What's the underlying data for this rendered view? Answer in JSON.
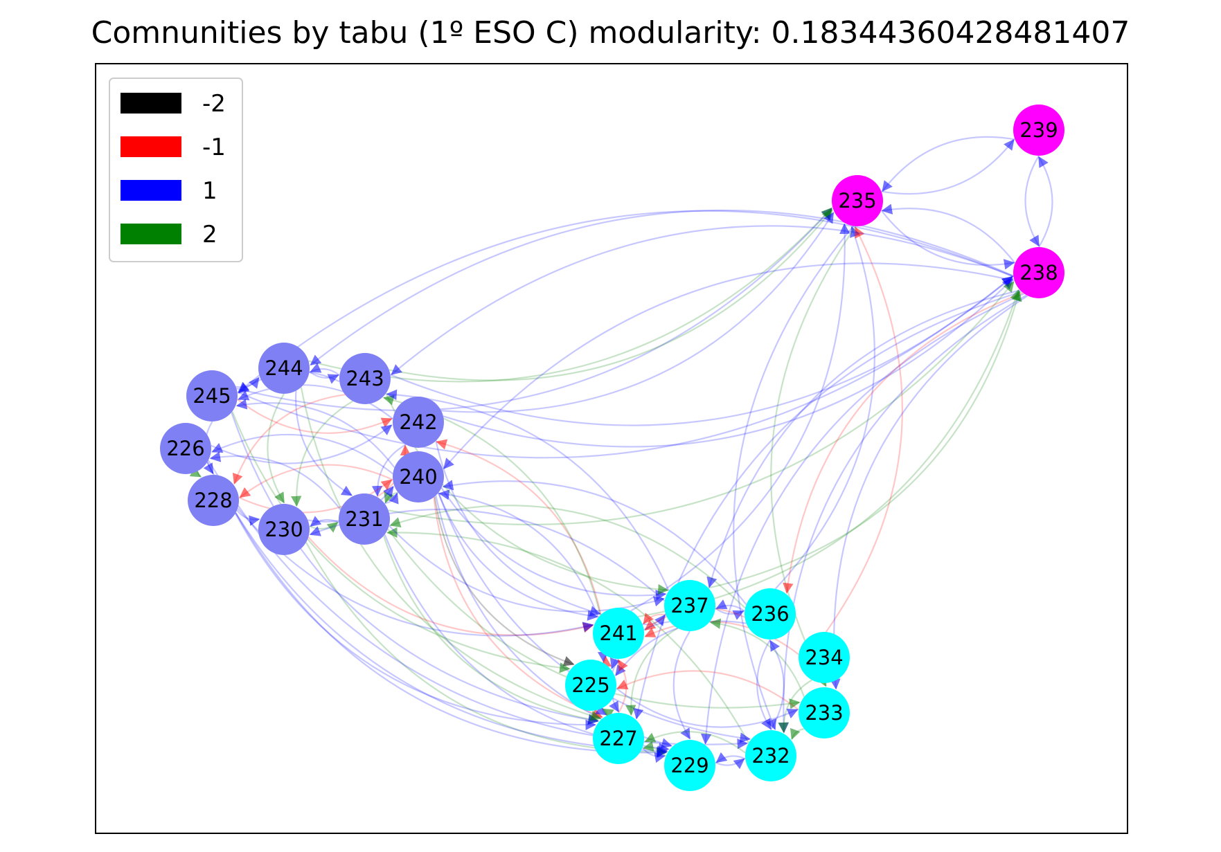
{
  "title": "Comnunities by tabu (1º ESO C) modularity: 0.18344360428481407",
  "legend": [
    {
      "label": "-2",
      "color": "#000000"
    },
    {
      "label": "-1",
      "color": "#ff0000"
    },
    {
      "label": "1",
      "color": "#0000ff"
    },
    {
      "label": "2",
      "color": "#008000"
    }
  ],
  "community_colors": {
    "a": "#8080f5",
    "b": "#00ffff",
    "c": "#ff00ff"
  },
  "nodes": [
    {
      "id": "245",
      "community": "a"
    },
    {
      "id": "244",
      "community": "a"
    },
    {
      "id": "243",
      "community": "a"
    },
    {
      "id": "242",
      "community": "a"
    },
    {
      "id": "226",
      "community": "a"
    },
    {
      "id": "240",
      "community": "a"
    },
    {
      "id": "228",
      "community": "a"
    },
    {
      "id": "230",
      "community": "a"
    },
    {
      "id": "231",
      "community": "a"
    },
    {
      "id": "237",
      "community": "b"
    },
    {
      "id": "236",
      "community": "b"
    },
    {
      "id": "241",
      "community": "b"
    },
    {
      "id": "234",
      "community": "b"
    },
    {
      "id": "225",
      "community": "b"
    },
    {
      "id": "233",
      "community": "b"
    },
    {
      "id": "227",
      "community": "b"
    },
    {
      "id": "232",
      "community": "b"
    },
    {
      "id": "229",
      "community": "b"
    },
    {
      "id": "239",
      "community": "c"
    },
    {
      "id": "235",
      "community": "c"
    },
    {
      "id": "238",
      "community": "c"
    }
  ],
  "edges": [
    {
      "s": "239",
      "t": "235",
      "w": "1"
    },
    {
      "s": "235",
      "t": "239",
      "w": "1"
    },
    {
      "s": "238",
      "t": "239",
      "w": "1"
    },
    {
      "s": "239",
      "t": "238",
      "w": "1"
    },
    {
      "s": "238",
      "t": "235",
      "w": "1"
    },
    {
      "s": "235",
      "t": "238",
      "w": "1"
    },
    {
      "s": "245",
      "t": "235",
      "w": "1"
    },
    {
      "s": "244",
      "t": "235",
      "w": "2"
    },
    {
      "s": "243",
      "t": "235",
      "w": "2"
    },
    {
      "s": "242",
      "t": "235",
      "w": "1"
    },
    {
      "s": "241",
      "t": "235",
      "w": "1"
    },
    {
      "s": "236",
      "t": "235",
      "w": "1"
    },
    {
      "s": "234",
      "t": "235",
      "w": "-1"
    },
    {
      "s": "235",
      "t": "233",
      "w": "2"
    },
    {
      "s": "235",
      "t": "232",
      "w": "1"
    },
    {
      "s": "245",
      "t": "238",
      "w": "1"
    },
    {
      "s": "243",
      "t": "238",
      "w": "1"
    },
    {
      "s": "242",
      "t": "238",
      "w": "1"
    },
    {
      "s": "231",
      "t": "238",
      "w": "2"
    },
    {
      "s": "238",
      "t": "245",
      "w": "1"
    },
    {
      "s": "238",
      "t": "244",
      "w": "1"
    },
    {
      "s": "238",
      "t": "243",
      "w": "1"
    },
    {
      "s": "238",
      "t": "240",
      "w": "1"
    },
    {
      "s": "238",
      "t": "237",
      "w": "1"
    },
    {
      "s": "238",
      "t": "236",
      "w": "-1"
    },
    {
      "s": "238",
      "t": "233",
      "w": "1"
    },
    {
      "s": "238",
      "t": "232",
      "w": "1"
    },
    {
      "s": "238",
      "t": "229",
      "w": "1"
    },
    {
      "s": "238",
      "t": "227",
      "w": "1"
    },
    {
      "s": "237",
      "t": "238",
      "w": "2"
    },
    {
      "s": "241",
      "t": "238",
      "w": "2"
    },
    {
      "s": "245",
      "t": "244",
      "w": "1"
    },
    {
      "s": "244",
      "t": "243",
      "w": "1"
    },
    {
      "s": "243",
      "t": "244",
      "w": "1"
    },
    {
      "s": "243",
      "t": "245",
      "w": "1"
    },
    {
      "s": "242",
      "t": "245",
      "w": "1"
    },
    {
      "s": "245",
      "t": "242",
      "w": "-1"
    },
    {
      "s": "240",
      "t": "245",
      "w": "1"
    },
    {
      "s": "226",
      "t": "242",
      "w": "1"
    },
    {
      "s": "240",
      "t": "226",
      "w": "1"
    },
    {
      "s": "231",
      "t": "226",
      "w": "1"
    },
    {
      "s": "244",
      "t": "230",
      "w": "2"
    },
    {
      "s": "244",
      "t": "231",
      "w": "1"
    },
    {
      "s": "243",
      "t": "230",
      "w": "2"
    },
    {
      "s": "243",
      "t": "228",
      "w": "-1"
    },
    {
      "s": "242",
      "t": "231",
      "w": "1"
    },
    {
      "s": "240",
      "t": "231",
      "w": "2"
    },
    {
      "s": "231",
      "t": "240",
      "w": "1"
    },
    {
      "s": "231",
      "t": "242",
      "w": "-1"
    },
    {
      "s": "230",
      "t": "240",
      "w": "1"
    },
    {
      "s": "228",
      "t": "240",
      "w": "-1"
    },
    {
      "s": "228",
      "t": "230",
      "w": "1"
    },
    {
      "s": "231",
      "t": "230",
      "w": "1"
    },
    {
      "s": "230",
      "t": "231",
      "w": "2"
    },
    {
      "s": "240",
      "t": "228",
      "w": "-1"
    },
    {
      "s": "245",
      "t": "228",
      "w": "1"
    },
    {
      "s": "226",
      "t": "228",
      "w": "2"
    },
    {
      "s": "236",
      "t": "240",
      "w": "1"
    },
    {
      "s": "241",
      "t": "240",
      "w": "1"
    },
    {
      "s": "241",
      "t": "242",
      "w": "-1"
    },
    {
      "s": "241",
      "t": "243",
      "w": "2"
    },
    {
      "s": "237",
      "t": "243",
      "w": "1"
    },
    {
      "s": "237",
      "t": "230",
      "w": "1"
    },
    {
      "s": "236",
      "t": "231",
      "w": "2"
    },
    {
      "s": "232",
      "t": "231",
      "w": "2"
    },
    {
      "s": "240",
      "t": "237",
      "w": "1"
    },
    {
      "s": "240",
      "t": "241",
      "w": "1"
    },
    {
      "s": "240",
      "t": "225",
      "w": "-2"
    },
    {
      "s": "240",
      "t": "227",
      "w": "-1"
    },
    {
      "s": "240",
      "t": "229",
      "w": "1"
    },
    {
      "s": "240",
      "t": "232",
      "w": "1"
    },
    {
      "s": "231",
      "t": "237",
      "w": "1"
    },
    {
      "s": "231",
      "t": "229",
      "w": "1"
    },
    {
      "s": "231",
      "t": "227",
      "w": "2"
    },
    {
      "s": "231",
      "t": "233",
      "w": "2"
    },
    {
      "s": "230",
      "t": "241",
      "w": "-1"
    },
    {
      "s": "230",
      "t": "229",
      "w": "2"
    },
    {
      "s": "228",
      "t": "241",
      "w": "1"
    },
    {
      "s": "228",
      "t": "227",
      "w": "1"
    },
    {
      "s": "228",
      "t": "229",
      "w": "1"
    },
    {
      "s": "245",
      "t": "227",
      "w": "1"
    },
    {
      "s": "245",
      "t": "225",
      "w": "2"
    },
    {
      "s": "226",
      "t": "229",
      "w": "1"
    },
    {
      "s": "226",
      "t": "232",
      "w": "1"
    },
    {
      "s": "242",
      "t": "241",
      "w": "1"
    },
    {
      "s": "243",
      "t": "237",
      "w": "2"
    },
    {
      "s": "244",
      "t": "227",
      "w": "2"
    },
    {
      "s": "237",
      "t": "236",
      "w": "1"
    },
    {
      "s": "236",
      "t": "237",
      "w": "1"
    },
    {
      "s": "237",
      "t": "241",
      "w": "-1"
    },
    {
      "s": "241",
      "t": "237",
      "w": "1"
    },
    {
      "s": "236",
      "t": "241",
      "w": "-1"
    },
    {
      "s": "237",
      "t": "229",
      "w": "1"
    },
    {
      "s": "237",
      "t": "225",
      "w": "1"
    },
    {
      "s": "237",
      "t": "227",
      "w": "2"
    },
    {
      "s": "236",
      "t": "232",
      "w": "1"
    },
    {
      "s": "236",
      "t": "225",
      "w": "1"
    },
    {
      "s": "241",
      "t": "225",
      "w": "1"
    },
    {
      "s": "225",
      "t": "241",
      "w": "-1"
    },
    {
      "s": "241",
      "t": "227",
      "w": "1"
    },
    {
      "s": "227",
      "t": "241",
      "w": "-1"
    },
    {
      "s": "225",
      "t": "227",
      "w": "1"
    },
    {
      "s": "227",
      "t": "225",
      "w": "2"
    },
    {
      "s": "227",
      "t": "229",
      "w": "1"
    },
    {
      "s": "229",
      "t": "232",
      "w": "1"
    },
    {
      "s": "232",
      "t": "229",
      "w": "1"
    },
    {
      "s": "233",
      "t": "232",
      "w": "2"
    },
    {
      "s": "234",
      "t": "232",
      "w": "2"
    },
    {
      "s": "234",
      "t": "241",
      "w": "-1"
    },
    {
      "s": "233",
      "t": "225",
      "w": "-1"
    },
    {
      "s": "225",
      "t": "233",
      "w": "1"
    },
    {
      "s": "229",
      "t": "227",
      "w": "2"
    },
    {
      "s": "232",
      "t": "227",
      "w": "2"
    },
    {
      "s": "233",
      "t": "237",
      "w": "2"
    },
    {
      "s": "232",
      "t": "236",
      "w": "1"
    }
  ]
}
